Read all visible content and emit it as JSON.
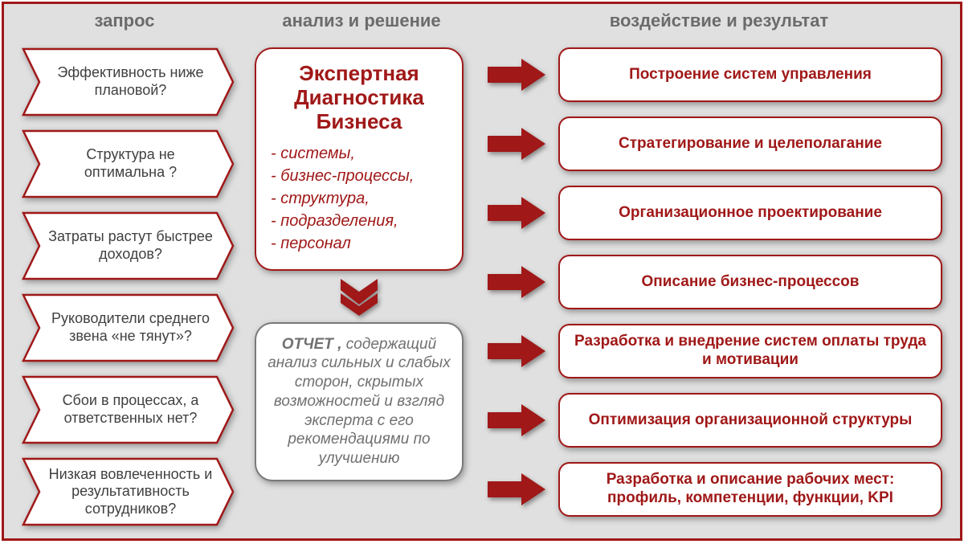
{
  "colors": {
    "accent": "#a01818",
    "bg": "#e0e0e0",
    "grey_text": "#6b6b6b",
    "grey_border": "#7a7a7a",
    "white": "#ffffff",
    "question_text": "#404040"
  },
  "headers": {
    "left": "запрос",
    "mid": "анализ и решение",
    "right": "воздействие и результат"
  },
  "questions": [
    "Эффективность ниже плановой?",
    "Структура не оптимальна ?",
    "Затраты растут быстрее доходов?",
    "Руководители среднего звена «не тянут»?",
    "Сбои в процессах, а ответственных нет?",
    "Низкая вовлеченность и результативность сотрудников?"
  ],
  "mid": {
    "title_l1": "Экспертная",
    "title_l2": "Диагностика",
    "title_l3": "Бизнеса",
    "items": [
      "системы,",
      "бизнес-процессы,",
      "структура,",
      "подразделения,",
      "персонал"
    ]
  },
  "report": {
    "bold": "ОТЧЕТ ,",
    "rest": " содержащий анализ сильных и слабых сторон, скрытых возможностей и взгляд эксперта с его рекомендациями по улучшению"
  },
  "outcomes": [
    "Построение систем управления",
    "Стратегирование и целеполагание",
    "Организационное проектирование",
    "Описание бизнес-процессов",
    "Разработка и внедрение систем оплаты труда и мотивации",
    "Оптимизация организационной структуры",
    "Разработка и описание рабочих мест: профиль, компетенции, функции, KPI"
  ],
  "shapes": {
    "chevron_stroke": "#a01818",
    "chevron_fill": "#ffffff",
    "arrow_fill": "#a01818"
  }
}
